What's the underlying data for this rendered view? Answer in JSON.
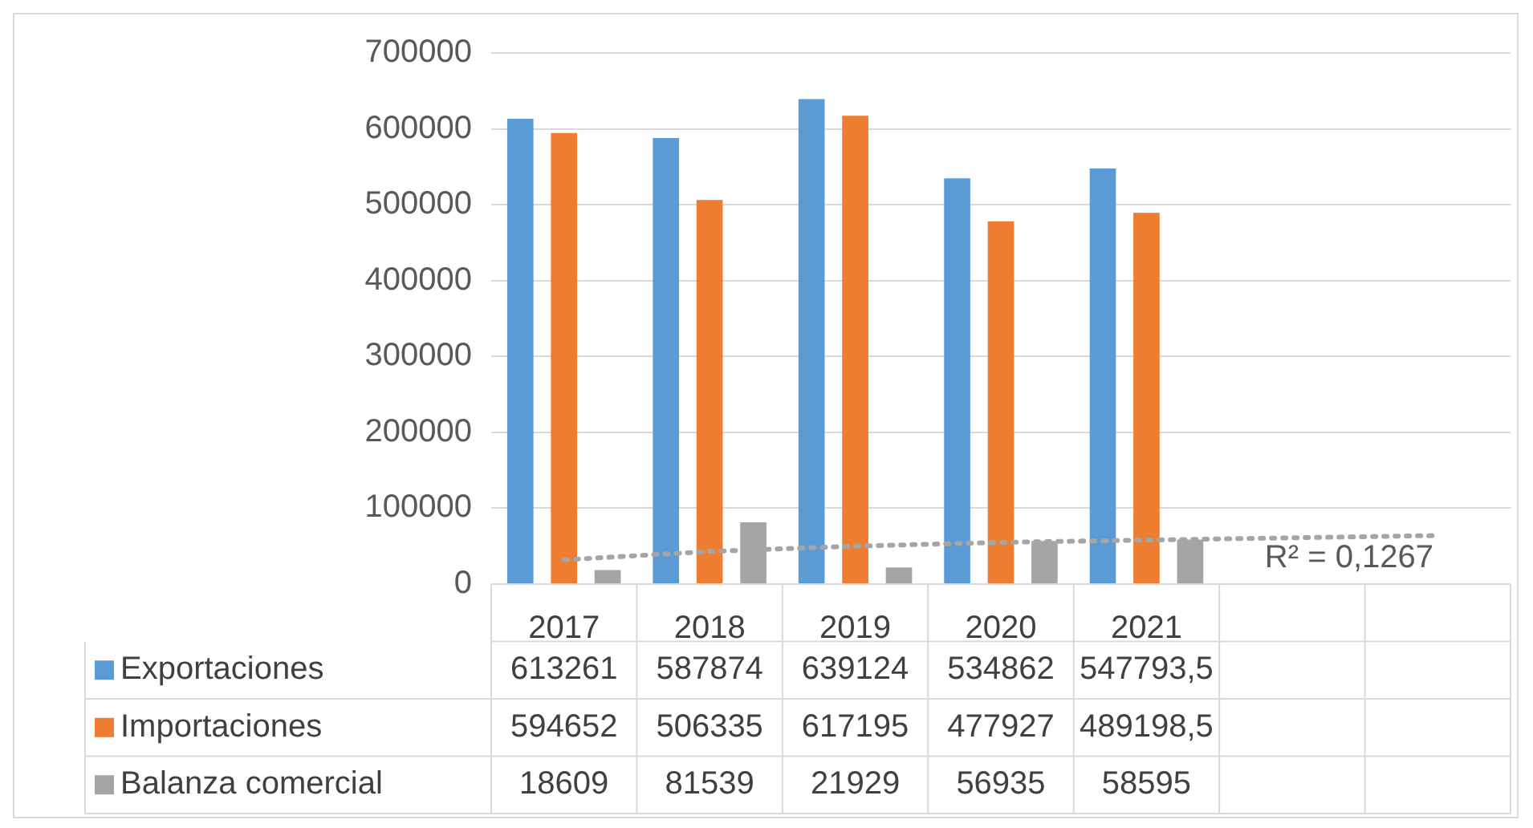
{
  "chart_data": {
    "type": "bar",
    "categories": [
      "2017",
      "2018",
      "2019",
      "2020",
      "2021",
      null,
      null
    ],
    "series": [
      {
        "name": "Exportaciones",
        "color": "#5b9bd5",
        "values": [
          613261,
          587874,
          639124,
          534862,
          547793.5,
          null,
          null
        ],
        "value_labels": [
          "613261",
          "587874",
          "639124",
          "534862",
          "547793,5",
          null,
          null
        ]
      },
      {
        "name": "Importaciones",
        "color": "#ed7d31",
        "values": [
          594652,
          506335,
          617195,
          477927,
          489198.5,
          null,
          null
        ],
        "value_labels": [
          "594652",
          "506335",
          "617195",
          "477927",
          "489198,5",
          null,
          null
        ]
      },
      {
        "name": "Balanza comercial",
        "color": "#a5a5a5",
        "values": [
          18609,
          81539,
          21929,
          56935,
          58595,
          null,
          null
        ],
        "value_labels": [
          "18609",
          "81539",
          "21929",
          "56935",
          "58595",
          null,
          null
        ]
      },
      {
        "type": "line",
        "color": "#a5a5a5",
        "line_style": "dotted",
        "marker": "none",
        "values": [
          32000,
          43000,
          50000,
          55000,
          58000,
          61000,
          64000
        ]
      }
    ],
    "ylim": [
      0,
      700000
    ],
    "yticks": [
      0,
      100000,
      200000,
      300000,
      400000,
      500000,
      600000,
      700000
    ],
    "grid": "y",
    "legend": "bottom",
    "annotations": [
      "R² = 0,1267"
    ]
  }
}
